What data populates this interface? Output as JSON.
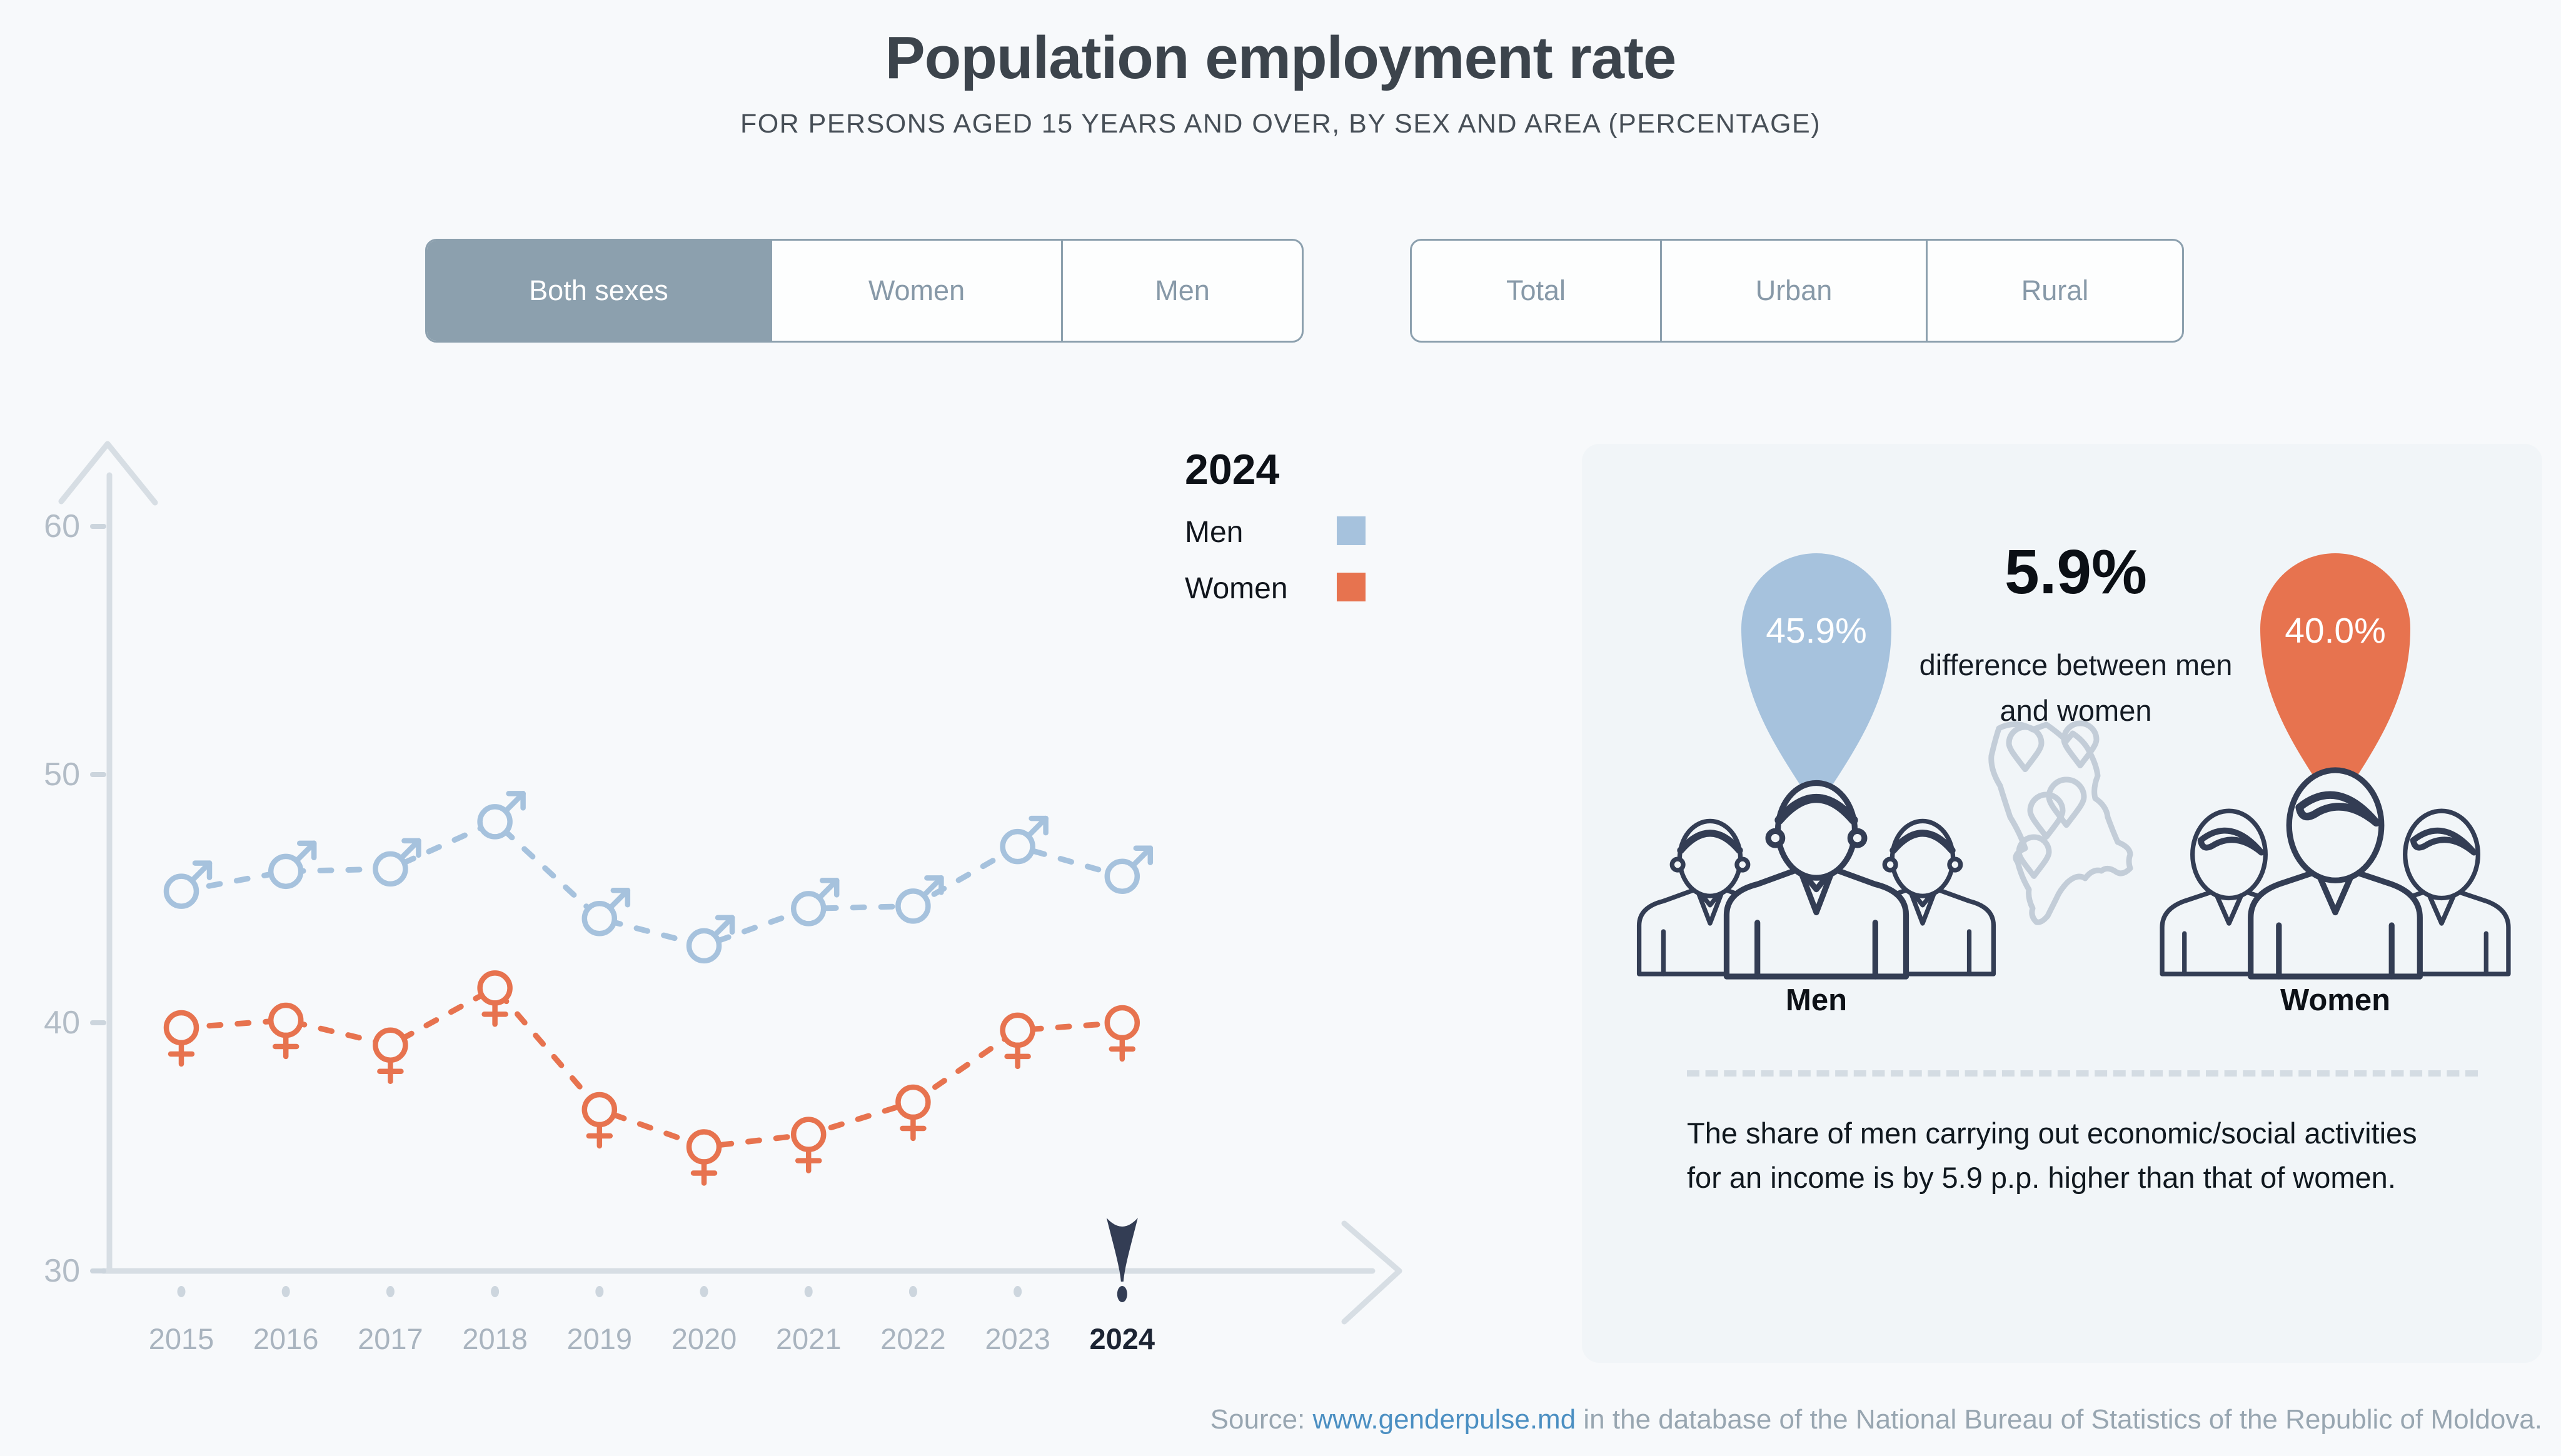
{
  "title": "Population employment rate",
  "subtitle": "FOR PERSONS AGED 15 YEARS AND OVER, BY SEX AND AREA (PERCENTAGE)",
  "filters": {
    "sex": {
      "options": [
        "Both sexes",
        "Women",
        "Men"
      ],
      "selected": "Both sexes"
    },
    "area": {
      "options": [
        "Total",
        "Urban",
        "Rural"
      ],
      "selected": null
    }
  },
  "legend": {
    "year": "2024",
    "items": [
      {
        "label": "Men",
        "color": "#a6c2dd"
      },
      {
        "label": "Women",
        "color": "#e7734f"
      }
    ]
  },
  "chart_data": {
    "type": "line",
    "x": [
      2015,
      2016,
      2017,
      2018,
      2019,
      2020,
      2021,
      2022,
      2023,
      2024
    ],
    "series": [
      {
        "name": "Men",
        "color": "#a6c2dd",
        "marker": "male",
        "values": [
          45.3,
          46.1,
          46.2,
          48.1,
          44.2,
          43.1,
          44.6,
          44.7,
          47.1,
          45.9
        ]
      },
      {
        "name": "Women",
        "color": "#e7734f",
        "marker": "female",
        "values": [
          39.8,
          40.1,
          39.1,
          41.4,
          36.5,
          35.0,
          35.5,
          36.8,
          39.7,
          40.0
        ]
      }
    ],
    "ylim": [
      30,
      62
    ],
    "yticks": [
      30,
      40,
      50,
      60
    ],
    "highlight_x": 2024,
    "line_style": "dashed",
    "grid": false,
    "legend_position": "top-right"
  },
  "panel": {
    "men_value": "45.9%",
    "women_value": "40.0%",
    "difference_value": "5.9%",
    "difference_label": "difference between men and women",
    "men_label": "Men",
    "women_label": "Women",
    "note": "The share of men carrying out economic/social activities for an income is by 5.9 p.p. higher than that of women."
  },
  "footer": {
    "prefix": "Source: ",
    "link": "www.genderpulse.md",
    "suffix": " in the database of the National Bureau of Statistics of the Republic of Moldova."
  },
  "colors": {
    "men_blue": "#a6c2dd",
    "women_orange": "#e7734f",
    "slate": "#8ca0ae",
    "navy": "#333d54",
    "axis": "#d7dee4",
    "tick_label": "#b2bcc6",
    "year_label": "#a9b4bf",
    "map_gray": "#c3cdd8",
    "page_bg": "#f7f9fb",
    "panel_bg": "#f1f5f8"
  }
}
